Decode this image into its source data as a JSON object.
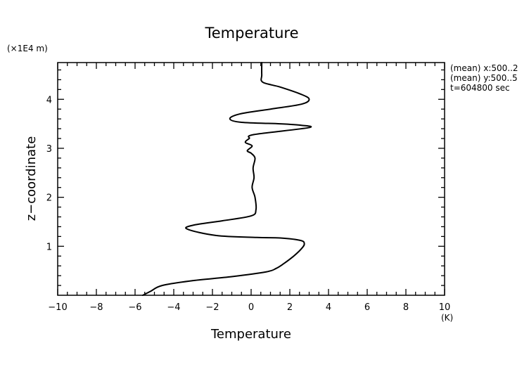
{
  "chart_data": {
    "type": "line",
    "title": "Temperature",
    "xlabel": "Temperature",
    "ylabel": "z−coordinate",
    "x_unit": "(K)",
    "y_unit": "(×1E4 m)",
    "xlim": [
      -10,
      10
    ],
    "ylim": [
      0.0,
      4.75
    ],
    "x_ticks": [
      -10,
      -8,
      -6,
      -4,
      -2,
      0,
      2,
      4,
      6,
      8,
      10
    ],
    "x_tick_labels": [
      "−10",
      "−8",
      "−6",
      "−4",
      "−2",
      "0",
      "2",
      "4",
      "6",
      "8",
      "10"
    ],
    "y_ticks": [
      1,
      2,
      3,
      4
    ],
    "y_tick_labels": [
      "1",
      "2",
      "3",
      "4"
    ],
    "grid": false,
    "annotations": [
      "(mean) x:500..2",
      "(mean) y:500..5",
      "t=604800 sec"
    ],
    "series": [
      {
        "x": [
          -5.6,
          -5.2,
          -4.6,
          -3.0,
          -1.0,
          0.8,
          1.3,
          1.7,
          2.2,
          2.6,
          2.75,
          2.55,
          1.5,
          0.3,
          -1.8,
          -3.3,
          -3.0,
          -1.5,
          0.0,
          0.25,
          0.2,
          0.05,
          0.15,
          0.1,
          0.2,
          0.0,
          -0.2,
          0.05,
          -0.3,
          -0.1,
          0.15,
          2.95,
          2.6,
          1.5,
          -0.5,
          -1.1,
          -0.6,
          1.0,
          2.6,
          3.0,
          2.6,
          1.5,
          0.6,
          0.55,
          0.55
        ],
        "y": [
          0.0,
          0.08,
          0.2,
          0.3,
          0.38,
          0.48,
          0.55,
          0.65,
          0.8,
          0.95,
          1.05,
          1.12,
          1.17,
          1.18,
          1.22,
          1.35,
          1.43,
          1.52,
          1.62,
          1.75,
          2.0,
          2.2,
          2.4,
          2.6,
          2.8,
          2.9,
          2.95,
          3.05,
          3.12,
          3.2,
          3.28,
          3.42,
          3.47,
          3.5,
          3.53,
          3.6,
          3.7,
          3.8,
          3.9,
          4.0,
          4.1,
          4.25,
          4.35,
          4.5,
          4.75
        ]
      }
    ]
  }
}
